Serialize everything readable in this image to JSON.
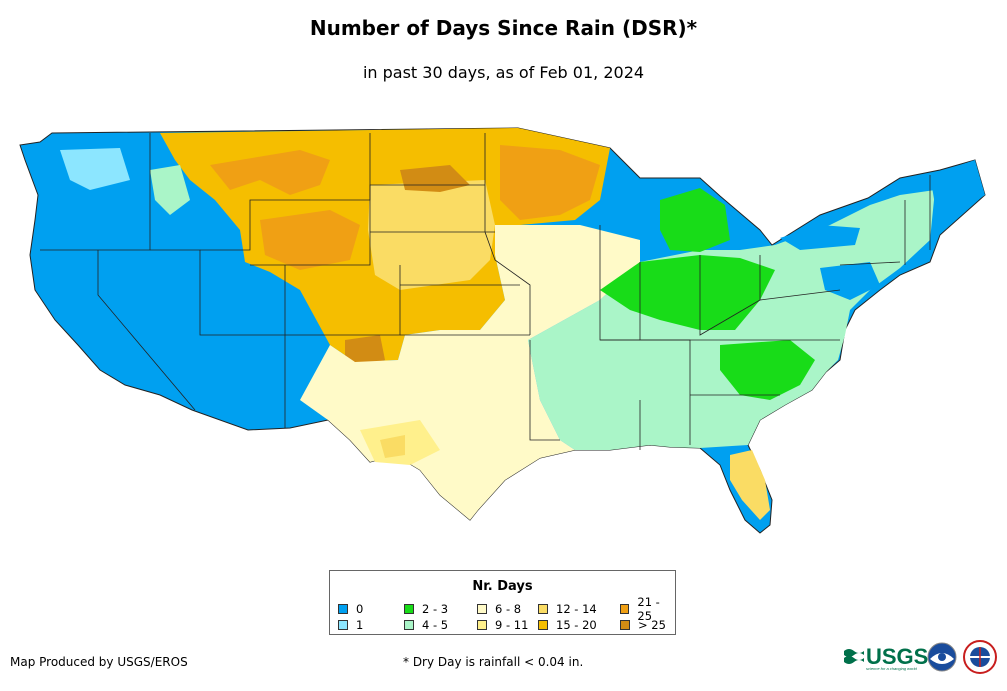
{
  "title": "Number of Days Since Rain (DSR)*",
  "subtitle": "in past 30 days, as of Feb 01, 2024",
  "legend": {
    "title": "Nr. Days",
    "items": [
      {
        "label": "0",
        "color": "#00a0f0"
      },
      {
        "label": "1",
        "color": "#8ce6ff"
      },
      {
        "label": "2 - 3",
        "color": "#18dc18"
      },
      {
        "label": "4 - 5",
        "color": "#aaf5c8"
      },
      {
        "label": "6 - 8",
        "color": "#fffac8"
      },
      {
        "label": "9 - 11",
        "color": "#fff08c"
      },
      {
        "label": "12 - 14",
        "color": "#fadc64"
      },
      {
        "label": "15 - 20",
        "color": "#f5be00"
      },
      {
        "label": "21 - 25",
        "color": "#f0a014"
      },
      {
        "label": "> 25",
        "color": "#d28c14"
      }
    ]
  },
  "footer": {
    "credit": "Map Produced by USGS/EROS",
    "note": "* Dry Day is rainfall < 0.04 in."
  },
  "logos": {
    "usgs": "USGS",
    "usgs_tagline": "science for a changing world",
    "noaa": "noaa-logo",
    "nws": "nws-logo"
  }
}
